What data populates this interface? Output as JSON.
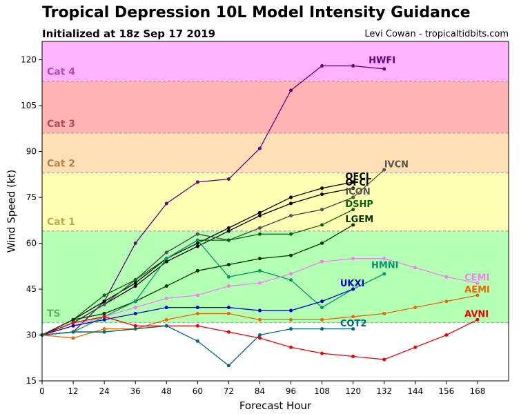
{
  "title": "Tropical Depression 10L Model Intensity Guidance",
  "subtitle": "Initialized at 18z Sep 17 2019",
  "credit": "Levi Cowan - tropicaltidbits.com",
  "chart_data": {
    "type": "line",
    "xlabel": "Forecast Hour",
    "ylabel": "Wind Speed (kt)",
    "xlim": [
      0,
      168
    ],
    "ylim": [
      15,
      126
    ],
    "xticks": [
      0,
      12,
      24,
      36,
      48,
      60,
      72,
      84,
      96,
      108,
      120,
      132,
      144,
      156,
      168
    ],
    "yticks": [
      15,
      30,
      45,
      60,
      75,
      90,
      105,
      120
    ],
    "grid": false,
    "bands": [
      {
        "label": "TS",
        "from": 34,
        "to": 64,
        "color": "#b3ffb3",
        "label_color": "#5cb85c"
      },
      {
        "label": "Cat 1",
        "from": 64,
        "to": 83,
        "color": "#ffffb3",
        "label_color": "#b3b34d"
      },
      {
        "label": "Cat 2",
        "from": 83,
        "to": 96,
        "color": "#ffdfb3",
        "label_color": "#b3814d"
      },
      {
        "label": "Cat 3",
        "from": 96,
        "to": 113,
        "color": "#ffb3b3",
        "label_color": "#b34d4d"
      },
      {
        "label": "Cat 4",
        "from": 113,
        "to": 126,
        "color": "#ffb3ff",
        "label_color": "#b34db3"
      }
    ],
    "series": [
      {
        "name": "HWFI",
        "color": "#660080",
        "label_pos": [
          126,
          120
        ],
        "x": [
          0,
          12,
          24,
          36,
          48,
          60,
          72,
          84,
          96,
          108,
          120,
          132
        ],
        "y": [
          30,
          31,
          41,
          60,
          73,
          80,
          81,
          91,
          110,
          118,
          118,
          117
        ]
      },
      {
        "name": "IVCN",
        "color": "#555555",
        "label_pos": [
          132,
          86
        ],
        "x": [
          0,
          12,
          24,
          36,
          48,
          60,
          72,
          84,
          96,
          108,
          120,
          132
        ],
        "y": [
          30,
          34,
          40,
          48,
          57,
          63,
          61,
          65,
          69,
          71,
          75,
          84
        ]
      },
      {
        "name": "OFCL",
        "color": "#000000",
        "label_pos": [
          117,
          82
        ],
        "x": [
          0,
          12,
          24,
          36,
          48,
          60,
          72,
          84,
          96,
          108,
          120
        ],
        "y": [
          30,
          35,
          41,
          47,
          55,
          60,
          65,
          70,
          75,
          78,
          80
        ]
      },
      {
        "name": "OFCI",
        "color": "#000000",
        "label_pos": [
          117,
          80
        ],
        "x": [
          0,
          12,
          24,
          36,
          48,
          60,
          72,
          84,
          96,
          108,
          120
        ],
        "y": [
          30,
          34,
          40,
          46,
          54,
          59,
          64,
          69,
          73,
          76,
          78
        ]
      },
      {
        "name": "ICON",
        "color": "#555555",
        "label_pos": [
          117,
          77
        ],
        "x": [
          0,
          12,
          24,
          36,
          48,
          60,
          72,
          84,
          96,
          108,
          120
        ],
        "y": [
          30,
          34,
          40,
          48,
          57,
          63,
          61,
          65,
          69,
          71,
          75
        ]
      },
      {
        "name": "DSHP",
        "color": "#006400",
        "label_pos": [
          117,
          73
        ],
        "x": [
          0,
          12,
          24,
          36,
          48,
          60,
          72,
          84,
          96,
          108,
          120
        ],
        "y": [
          30,
          35,
          43,
          48,
          55,
          61,
          61,
          63,
          63,
          66,
          71
        ]
      },
      {
        "name": "LGEM",
        "color": "#003300",
        "label_pos": [
          117,
          68
        ],
        "x": [
          0,
          12,
          24,
          36,
          48,
          60,
          72,
          84,
          96,
          108,
          120
        ],
        "y": [
          30,
          35,
          37,
          41,
          46,
          51,
          53,
          55,
          56,
          60,
          66
        ]
      },
      {
        "name": "HMNI",
        "color": "#009966",
        "label_pos": [
          127,
          53
        ],
        "x": [
          0,
          12,
          24,
          36,
          48,
          60,
          72,
          84,
          96,
          108,
          120,
          132
        ],
        "y": [
          30,
          31,
          36,
          41,
          55,
          61,
          49,
          51,
          48,
          39,
          45,
          50
        ]
      },
      {
        "name": "CEMI",
        "color": "#ee82ee",
        "label_pos": [
          163,
          49
        ],
        "x": [
          0,
          12,
          24,
          36,
          48,
          60,
          72,
          84,
          96,
          108,
          120,
          132,
          144,
          156,
          168
        ],
        "y": [
          30,
          33,
          36,
          39,
          42,
          43,
          46,
          47,
          50,
          54,
          55,
          55,
          52,
          49,
          47
        ]
      },
      {
        "name": "UKXI",
        "color": "#0000dd",
        "label_pos": [
          115,
          47
        ],
        "x": [
          0,
          12,
          24,
          36,
          48,
          60,
          72,
          84,
          96,
          108,
          120
        ],
        "y": [
          30,
          33,
          35,
          37,
          39,
          39,
          39,
          38,
          38,
          41,
          45
        ]
      },
      {
        "name": "AEMI",
        "color": "#ee6600",
        "label_pos": [
          163,
          45
        ],
        "x": [
          0,
          12,
          24,
          36,
          48,
          60,
          72,
          84,
          96,
          108,
          120,
          132,
          144,
          156,
          168
        ],
        "y": [
          30,
          29,
          32,
          32,
          35,
          37,
          37,
          35,
          35,
          35,
          36,
          37,
          39,
          41,
          43
        ]
      },
      {
        "name": "AVNI",
        "color": "#ee0000",
        "label_pos": [
          163,
          37
        ],
        "x": [
          0,
          12,
          24,
          36,
          48,
          60,
          72,
          84,
          96,
          108,
          120,
          132,
          144,
          156,
          168
        ],
        "y": [
          30,
          34,
          36,
          33,
          33,
          33,
          31,
          29,
          26,
          24,
          23,
          22,
          26,
          30,
          35
        ]
      },
      {
        "name": "COT2",
        "color": "#006688",
        "label_pos": [
          115,
          34
        ],
        "x": [
          0,
          12,
          24,
          36,
          48,
          60,
          72,
          84,
          96,
          108,
          120
        ],
        "y": [
          30,
          31,
          31,
          32,
          33,
          28,
          20,
          30,
          32,
          32,
          32
        ]
      },
      {
        "name": "",
        "color": "#0a6b6b",
        "x": [
          0,
          12,
          24,
          36,
          48
        ],
        "y": [
          30,
          31,
          31,
          32,
          33
        ]
      }
    ]
  }
}
